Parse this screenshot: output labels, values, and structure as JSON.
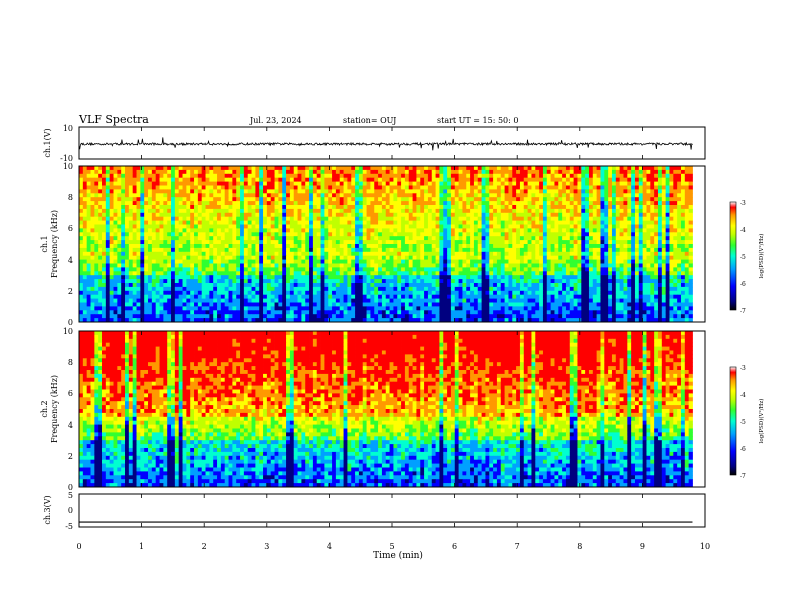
{
  "header": {
    "title": "VLF Spectra",
    "date": "Jul. 23, 2024",
    "station": "station= OUJ",
    "start": "start UT =  15: 50: 0"
  },
  "chart_data": [
    {
      "type": "line",
      "panel": "ch1-waveform",
      "ylabel": "ch.1(V)",
      "ylim": [
        -10,
        10
      ],
      "y_ticks": [
        "10",
        "-10"
      ],
      "x": [
        0,
        9.8
      ],
      "series": [
        {
          "values": [
            -0.6,
            -0.6
          ]
        }
      ]
    },
    {
      "type": "heatmap",
      "panel": "ch1-spectrogram",
      "ylabel": "ch.1\nFrequency (kHz)",
      "ylim": [
        0,
        10
      ],
      "y_ticks": [
        "0",
        "2",
        "4",
        "6",
        "8",
        "10"
      ],
      "colorbar": {
        "label": "log(PSD)(V²/Hz)",
        "min": -7,
        "max": -3,
        "ticks": [
          "-3",
          "-4",
          "-5",
          "-6",
          "-7"
        ]
      }
    },
    {
      "type": "heatmap",
      "panel": "ch2-spectrogram",
      "ylabel": "ch.2\nFrequency (kHz)",
      "ylim": [
        0,
        10
      ],
      "y_ticks": [
        "0",
        "2",
        "4",
        "6",
        "8",
        "10"
      ],
      "colorbar": {
        "label": "log(PSD)(V²/Hz)",
        "min": -7,
        "max": -3,
        "ticks": [
          "-3",
          "-4",
          "-5",
          "-6",
          "-7"
        ]
      }
    },
    {
      "type": "line",
      "panel": "ch3-waveform",
      "ylabel": "ch.3(V)",
      "ylim": [
        -5,
        5
      ],
      "y_ticks": [
        "5",
        "0",
        "-5"
      ],
      "x": [
        0,
        9.8
      ],
      "series": [
        {
          "values": [
            -3.5,
            -3.5
          ]
        }
      ]
    }
  ],
  "x_axis": {
    "label": "Time (min)",
    "xlim": [
      0,
      10
    ],
    "ticks": [
      "0",
      "1",
      "2",
      "3",
      "4",
      "5",
      "6",
      "7",
      "8",
      "9",
      "10"
    ]
  },
  "colors": {
    "colormap": [
      "#000080",
      "#0000ff",
      "#00a0ff",
      "#00ffd0",
      "#30ff30",
      "#c0ff00",
      "#ffff00",
      "#ff9900",
      "#ff0000",
      "#ffffff"
    ]
  }
}
